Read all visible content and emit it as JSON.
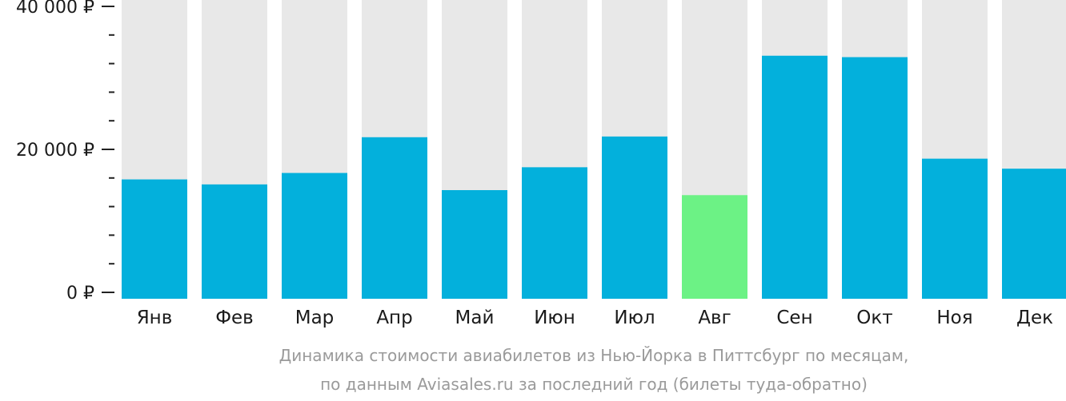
{
  "chart_data": {
    "type": "bar",
    "categories": [
      "Янв",
      "Фев",
      "Мар",
      "Апр",
      "Май",
      "Июн",
      "Июл",
      "Авг",
      "Сен",
      "Окт",
      "Ноя",
      "Дек"
    ],
    "values": [
      15800,
      15100,
      16700,
      21700,
      14300,
      17500,
      21800,
      13600,
      33100,
      32900,
      18700,
      17300
    ],
    "highlight_index": 7,
    "ylim": [
      0,
      40000
    ],
    "y_ticks": [
      {
        "value": 0,
        "label": "0 ₽"
      },
      {
        "value": 20000,
        "label": "20 000 ₽"
      },
      {
        "value": 40000,
        "label": "40 000 ₽"
      }
    ],
    "y_minor_step": 4000,
    "caption": [
      "Динамика стоимости авиабилетов из Нью-Йорка в Питтсбург по месяцам,",
      "по данным Aviasales.ru за последний год (билеты туда-обратно)"
    ],
    "grid": false,
    "legend": "none",
    "colors": {
      "bar": "#03b0dc",
      "highlight": "#6cf285",
      "track": "#e8e8e8",
      "axis": "#222222"
    }
  }
}
